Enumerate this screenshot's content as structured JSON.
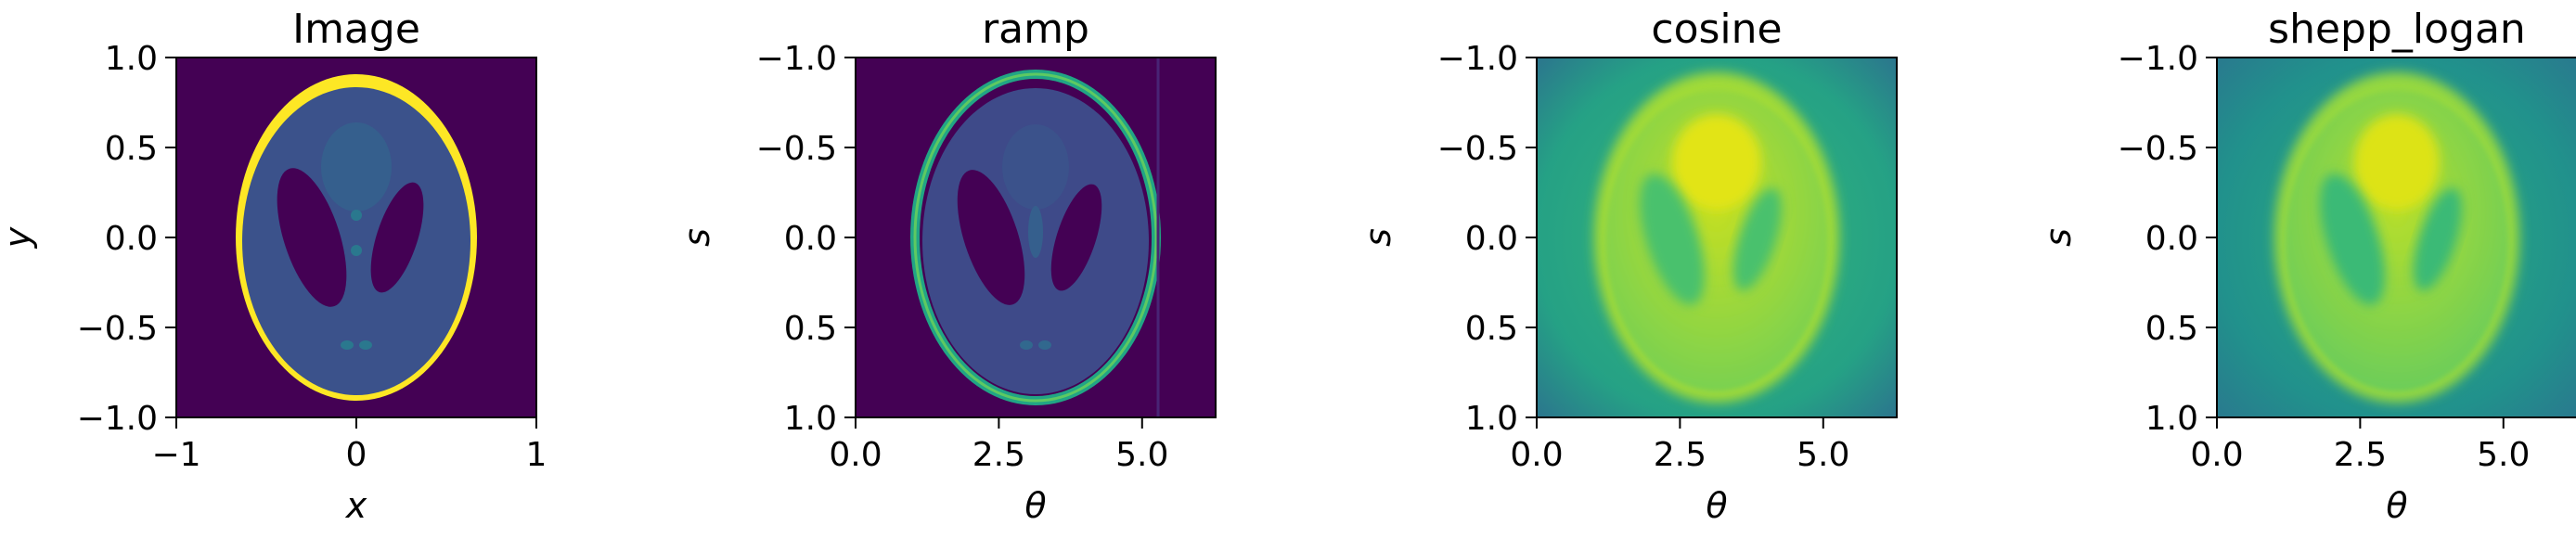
{
  "chart_data": [
    {
      "type": "heatmap",
      "title": "Image",
      "xlabel": "x",
      "ylabel": "y",
      "xlim": [
        -1,
        1
      ],
      "ylim": [
        -1,
        1
      ],
      "yaxis_direction": "up",
      "xticks": [
        {
          "value": -1,
          "label": "−1"
        },
        {
          "value": 0,
          "label": "0"
        },
        {
          "value": 1,
          "label": "1"
        }
      ],
      "yticks": [
        {
          "value": 1.0,
          "label": "1.0"
        },
        {
          "value": 0.5,
          "label": "0.5"
        },
        {
          "value": 0.0,
          "label": "0.0"
        },
        {
          "value": -0.5,
          "label": "−0.5"
        },
        {
          "value": -1.0,
          "label": "−1.0"
        }
      ],
      "colormap": "viridis",
      "content": "shepp-logan-phantom"
    },
    {
      "type": "heatmap",
      "title": "ramp",
      "xlabel": "θ",
      "ylabel": "s",
      "xlim": [
        0,
        6.283
      ],
      "ylim": [
        -1,
        1
      ],
      "yaxis_direction": "down",
      "xticks": [
        {
          "value": 0.0,
          "label": "0.0"
        },
        {
          "value": 2.5,
          "label": "2.5"
        },
        {
          "value": 5.0,
          "label": "5.0"
        }
      ],
      "yticks": [
        {
          "value": -1.0,
          "label": "−1.0"
        },
        {
          "value": -0.5,
          "label": "−0.5"
        },
        {
          "value": 0.0,
          "label": "0.0"
        },
        {
          "value": 0.5,
          "label": "0.5"
        },
        {
          "value": 1.0,
          "label": "1.0"
        }
      ],
      "colormap": "viridis",
      "content": "reconstruction-ramp-filter"
    },
    {
      "type": "heatmap",
      "title": "cosine",
      "xlabel": "θ",
      "ylabel": "s",
      "xlim": [
        0,
        6.283
      ],
      "ylim": [
        -1,
        1
      ],
      "yaxis_direction": "down",
      "xticks": [
        {
          "value": 0.0,
          "label": "0.0"
        },
        {
          "value": 2.5,
          "label": "2.5"
        },
        {
          "value": 5.0,
          "label": "5.0"
        }
      ],
      "yticks": [
        {
          "value": -1.0,
          "label": "−1.0"
        },
        {
          "value": -0.5,
          "label": "−0.5"
        },
        {
          "value": 0.0,
          "label": "0.0"
        },
        {
          "value": 0.5,
          "label": "0.5"
        },
        {
          "value": 1.0,
          "label": "1.0"
        }
      ],
      "colormap": "viridis",
      "content": "reconstruction-cosine-filter"
    },
    {
      "type": "heatmap",
      "title": "shepp_logan",
      "xlabel": "θ",
      "ylabel": "s",
      "xlim": [
        0,
        6.283
      ],
      "ylim": [
        -1,
        1
      ],
      "yaxis_direction": "down",
      "xticks": [
        {
          "value": 0.0,
          "label": "0.0"
        },
        {
          "value": 2.5,
          "label": "2.5"
        },
        {
          "value": 5.0,
          "label": "5.0"
        }
      ],
      "yticks": [
        {
          "value": -1.0,
          "label": "−1.0"
        },
        {
          "value": -0.5,
          "label": "−0.5"
        },
        {
          "value": 0.0,
          "label": "0.0"
        },
        {
          "value": 0.5,
          "label": "0.5"
        },
        {
          "value": 1.0,
          "label": "1.0"
        }
      ],
      "colormap": "viridis",
      "content": "reconstruction-shepp-logan-filter"
    }
  ],
  "colors": {
    "viridis_dark": "#440154",
    "viridis_blue": "#3b528b",
    "viridis_teal": "#21918c",
    "viridis_green": "#5ec962",
    "viridis_yellow": "#fde725"
  }
}
